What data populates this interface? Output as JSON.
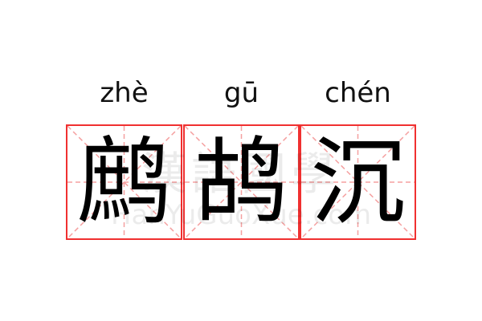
{
  "characters": [
    {
      "pinyin": "zhè",
      "hanzi": "鹧"
    },
    {
      "pinyin": "gū",
      "hanzi": "鸪"
    },
    {
      "pinyin": "chén",
      "hanzi": "沉"
    }
  ],
  "watermark": {
    "chinese": "漢語國學",
    "latin": "HanYuGuoXue.com"
  },
  "colors": {
    "grid_border": "#f03030",
    "grid_guides": "#f5a0a0",
    "text": "#000000"
  }
}
